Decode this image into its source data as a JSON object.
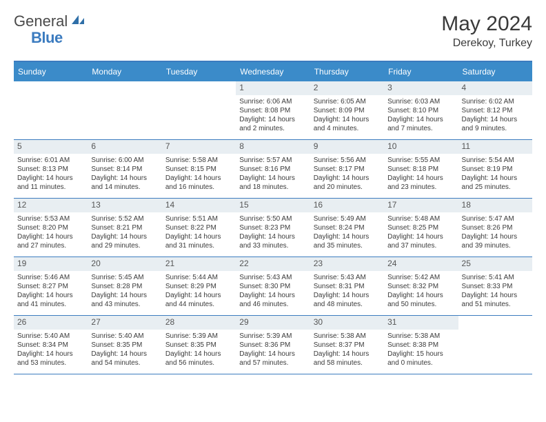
{
  "logo": {
    "part1": "General",
    "part2": "Blue"
  },
  "title": "May 2024",
  "location": "Derekoy, Turkey",
  "colors": {
    "header_bg": "#3b8bc9",
    "border": "#3b7bbf",
    "daynum_bg": "#e8eef2",
    "text": "#3a3a3a"
  },
  "weekdays": [
    "Sunday",
    "Monday",
    "Tuesday",
    "Wednesday",
    "Thursday",
    "Friday",
    "Saturday"
  ],
  "weeks": [
    [
      {
        "n": "",
        "sr": "",
        "ss": "",
        "dl": ""
      },
      {
        "n": "",
        "sr": "",
        "ss": "",
        "dl": ""
      },
      {
        "n": "",
        "sr": "",
        "ss": "",
        "dl": ""
      },
      {
        "n": "1",
        "sr": "Sunrise: 6:06 AM",
        "ss": "Sunset: 8:08 PM",
        "dl": "Daylight: 14 hours and 2 minutes."
      },
      {
        "n": "2",
        "sr": "Sunrise: 6:05 AM",
        "ss": "Sunset: 8:09 PM",
        "dl": "Daylight: 14 hours and 4 minutes."
      },
      {
        "n": "3",
        "sr": "Sunrise: 6:03 AM",
        "ss": "Sunset: 8:10 PM",
        "dl": "Daylight: 14 hours and 7 minutes."
      },
      {
        "n": "4",
        "sr": "Sunrise: 6:02 AM",
        "ss": "Sunset: 8:12 PM",
        "dl": "Daylight: 14 hours and 9 minutes."
      }
    ],
    [
      {
        "n": "5",
        "sr": "Sunrise: 6:01 AM",
        "ss": "Sunset: 8:13 PM",
        "dl": "Daylight: 14 hours and 11 minutes."
      },
      {
        "n": "6",
        "sr": "Sunrise: 6:00 AM",
        "ss": "Sunset: 8:14 PM",
        "dl": "Daylight: 14 hours and 14 minutes."
      },
      {
        "n": "7",
        "sr": "Sunrise: 5:58 AM",
        "ss": "Sunset: 8:15 PM",
        "dl": "Daylight: 14 hours and 16 minutes."
      },
      {
        "n": "8",
        "sr": "Sunrise: 5:57 AM",
        "ss": "Sunset: 8:16 PM",
        "dl": "Daylight: 14 hours and 18 minutes."
      },
      {
        "n": "9",
        "sr": "Sunrise: 5:56 AM",
        "ss": "Sunset: 8:17 PM",
        "dl": "Daylight: 14 hours and 20 minutes."
      },
      {
        "n": "10",
        "sr": "Sunrise: 5:55 AM",
        "ss": "Sunset: 8:18 PM",
        "dl": "Daylight: 14 hours and 23 minutes."
      },
      {
        "n": "11",
        "sr": "Sunrise: 5:54 AM",
        "ss": "Sunset: 8:19 PM",
        "dl": "Daylight: 14 hours and 25 minutes."
      }
    ],
    [
      {
        "n": "12",
        "sr": "Sunrise: 5:53 AM",
        "ss": "Sunset: 8:20 PM",
        "dl": "Daylight: 14 hours and 27 minutes."
      },
      {
        "n": "13",
        "sr": "Sunrise: 5:52 AM",
        "ss": "Sunset: 8:21 PM",
        "dl": "Daylight: 14 hours and 29 minutes."
      },
      {
        "n": "14",
        "sr": "Sunrise: 5:51 AM",
        "ss": "Sunset: 8:22 PM",
        "dl": "Daylight: 14 hours and 31 minutes."
      },
      {
        "n": "15",
        "sr": "Sunrise: 5:50 AM",
        "ss": "Sunset: 8:23 PM",
        "dl": "Daylight: 14 hours and 33 minutes."
      },
      {
        "n": "16",
        "sr": "Sunrise: 5:49 AM",
        "ss": "Sunset: 8:24 PM",
        "dl": "Daylight: 14 hours and 35 minutes."
      },
      {
        "n": "17",
        "sr": "Sunrise: 5:48 AM",
        "ss": "Sunset: 8:25 PM",
        "dl": "Daylight: 14 hours and 37 minutes."
      },
      {
        "n": "18",
        "sr": "Sunrise: 5:47 AM",
        "ss": "Sunset: 8:26 PM",
        "dl": "Daylight: 14 hours and 39 minutes."
      }
    ],
    [
      {
        "n": "19",
        "sr": "Sunrise: 5:46 AM",
        "ss": "Sunset: 8:27 PM",
        "dl": "Daylight: 14 hours and 41 minutes."
      },
      {
        "n": "20",
        "sr": "Sunrise: 5:45 AM",
        "ss": "Sunset: 8:28 PM",
        "dl": "Daylight: 14 hours and 43 minutes."
      },
      {
        "n": "21",
        "sr": "Sunrise: 5:44 AM",
        "ss": "Sunset: 8:29 PM",
        "dl": "Daylight: 14 hours and 44 minutes."
      },
      {
        "n": "22",
        "sr": "Sunrise: 5:43 AM",
        "ss": "Sunset: 8:30 PM",
        "dl": "Daylight: 14 hours and 46 minutes."
      },
      {
        "n": "23",
        "sr": "Sunrise: 5:43 AM",
        "ss": "Sunset: 8:31 PM",
        "dl": "Daylight: 14 hours and 48 minutes."
      },
      {
        "n": "24",
        "sr": "Sunrise: 5:42 AM",
        "ss": "Sunset: 8:32 PM",
        "dl": "Daylight: 14 hours and 50 minutes."
      },
      {
        "n": "25",
        "sr": "Sunrise: 5:41 AM",
        "ss": "Sunset: 8:33 PM",
        "dl": "Daylight: 14 hours and 51 minutes."
      }
    ],
    [
      {
        "n": "26",
        "sr": "Sunrise: 5:40 AM",
        "ss": "Sunset: 8:34 PM",
        "dl": "Daylight: 14 hours and 53 minutes."
      },
      {
        "n": "27",
        "sr": "Sunrise: 5:40 AM",
        "ss": "Sunset: 8:35 PM",
        "dl": "Daylight: 14 hours and 54 minutes."
      },
      {
        "n": "28",
        "sr": "Sunrise: 5:39 AM",
        "ss": "Sunset: 8:35 PM",
        "dl": "Daylight: 14 hours and 56 minutes."
      },
      {
        "n": "29",
        "sr": "Sunrise: 5:39 AM",
        "ss": "Sunset: 8:36 PM",
        "dl": "Daylight: 14 hours and 57 minutes."
      },
      {
        "n": "30",
        "sr": "Sunrise: 5:38 AM",
        "ss": "Sunset: 8:37 PM",
        "dl": "Daylight: 14 hours and 58 minutes."
      },
      {
        "n": "31",
        "sr": "Sunrise: 5:38 AM",
        "ss": "Sunset: 8:38 PM",
        "dl": "Daylight: 15 hours and 0 minutes."
      },
      {
        "n": "",
        "sr": "",
        "ss": "",
        "dl": ""
      }
    ]
  ]
}
